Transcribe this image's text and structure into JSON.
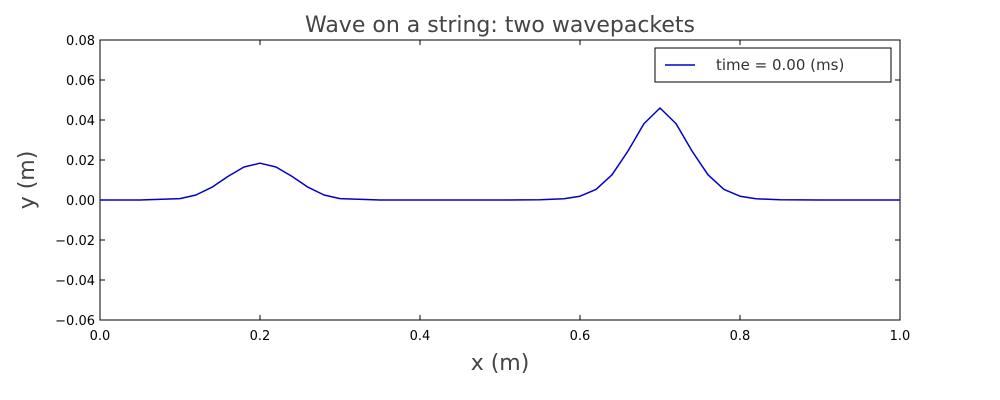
{
  "chart_data": {
    "type": "line",
    "title": "Wave on a string: two wavepackets",
    "xlabel": "x (m)",
    "ylabel": "y (m)",
    "xlim": [
      0.0,
      1.0
    ],
    "ylim": [
      -0.06,
      0.08
    ],
    "x_ticks": [
      "0.0",
      "0.2",
      "0.4",
      "0.6",
      "0.8",
      "1.0"
    ],
    "y_ticks": [
      "0.08",
      "0.06",
      "0.04",
      "0.02",
      "0.00",
      "−0.02",
      "−0.04",
      "−0.06"
    ],
    "grid": false,
    "legend_position": "top-right",
    "series": [
      {
        "name": "time = 0.00 (ms)",
        "color": "#0000cc",
        "x": [
          0.0,
          0.05,
          0.1,
          0.12,
          0.14,
          0.16,
          0.18,
          0.2,
          0.22,
          0.24,
          0.26,
          0.28,
          0.3,
          0.35,
          0.4,
          0.45,
          0.5,
          0.55,
          0.58,
          0.6,
          0.62,
          0.64,
          0.66,
          0.68,
          0.7,
          0.72,
          0.74,
          0.76,
          0.78,
          0.8,
          0.82,
          0.85,
          0.9,
          0.95,
          1.0
        ],
        "y": [
          0.0,
          0.0,
          0.0007,
          0.0025,
          0.0064,
          0.0118,
          0.0165,
          0.0184,
          0.0165,
          0.0118,
          0.0064,
          0.0025,
          0.0007,
          0.0,
          0.0,
          0.0,
          0.0,
          0.0001,
          0.0006,
          0.0019,
          0.0053,
          0.0126,
          0.0245,
          0.0382,
          0.046,
          0.0382,
          0.0245,
          0.0126,
          0.0053,
          0.0019,
          0.0006,
          0.0001,
          0.0,
          0.0,
          0.0
        ]
      }
    ]
  }
}
